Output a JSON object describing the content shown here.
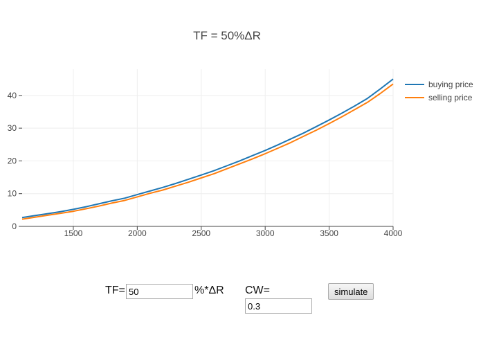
{
  "chart_data": {
    "type": "line",
    "title": "TF = 50%ΔR",
    "xlabel": "",
    "ylabel": "",
    "xlim": [
      1100,
      4000
    ],
    "ylim": [
      0,
      48
    ],
    "x_ticks": [
      1500,
      2000,
      2500,
      3000,
      3500,
      4000
    ],
    "y_ticks": [
      0,
      10,
      20,
      30,
      40
    ],
    "grid": true,
    "legend_position": "top-right",
    "series": [
      {
        "name": "buying price",
        "color": "#1f77b4",
        "x": [
          1100,
          1200,
          1300,
          1400,
          1500,
          1600,
          1700,
          1800,
          1900,
          2000,
          2100,
          2200,
          2300,
          2400,
          2500,
          2600,
          2700,
          2800,
          2900,
          3000,
          3100,
          3200,
          3300,
          3400,
          3500,
          3600,
          3700,
          3800,
          3900,
          4000
        ],
        "y": [
          2.7,
          3.3,
          3.9,
          4.5,
          5.2,
          6.0,
          6.9,
          7.8,
          8.6,
          9.7,
          10.8,
          11.9,
          13.1,
          14.4,
          15.7,
          17.0,
          18.5,
          20.0,
          21.6,
          23.2,
          24.9,
          26.7,
          28.5,
          30.5,
          32.5,
          34.6,
          36.8,
          39.1,
          42.0,
          45.0
        ]
      },
      {
        "name": "selling price",
        "color": "#ff7f0e",
        "x": [
          1100,
          1200,
          1300,
          1400,
          1500,
          1600,
          1700,
          1800,
          1900,
          2000,
          2100,
          2200,
          2300,
          2400,
          2500,
          2600,
          2700,
          2800,
          2900,
          3000,
          3100,
          3200,
          3300,
          3400,
          3500,
          3600,
          3700,
          3800,
          3900,
          4000
        ],
        "y": [
          2.2,
          2.8,
          3.4,
          4.0,
          4.6,
          5.4,
          6.2,
          7.1,
          7.9,
          9.0,
          10.1,
          11.1,
          12.3,
          13.5,
          14.8,
          16.1,
          17.6,
          19.1,
          20.6,
          22.2,
          23.9,
          25.6,
          27.5,
          29.4,
          31.4,
          33.5,
          35.7,
          37.9,
          40.6,
          43.5
        ]
      }
    ]
  },
  "controls": {
    "tf_label": "TF=",
    "tf_value": "50",
    "tf_suffix": "%*ΔR",
    "cw_label": "CW=",
    "cw_value": "0.3",
    "simulate_label": "simulate"
  }
}
